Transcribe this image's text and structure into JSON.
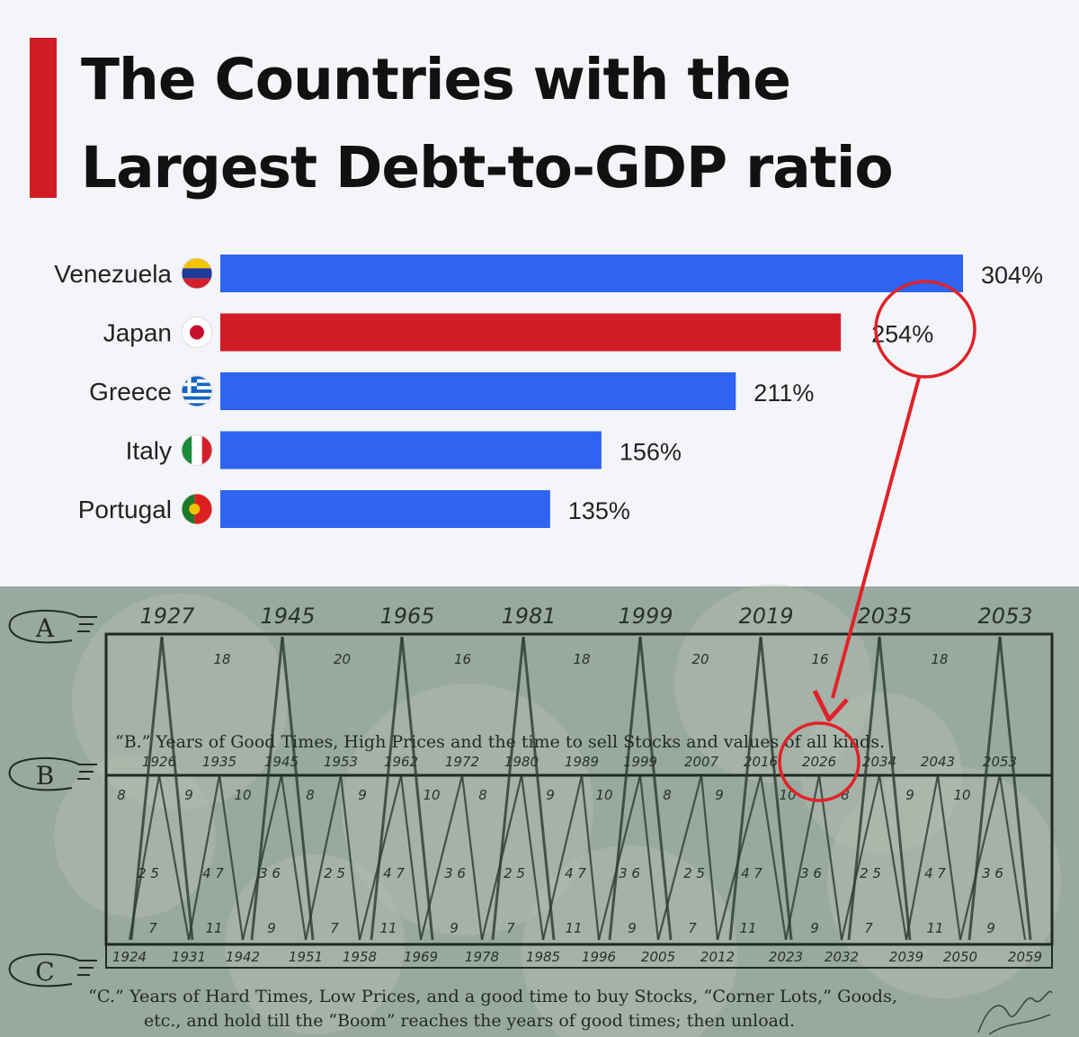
{
  "chart_data": [
    {
      "type": "bar",
      "title_lines": [
        "The Countries with the",
        "Largest Debt-to-GDP ratio"
      ],
      "categories": [
        "Venezuela",
        "Japan",
        "Greece",
        "Italy",
        "Portugal"
      ],
      "values": [
        304,
        254,
        211,
        156,
        135
      ],
      "value_labels": [
        "304%",
        "254%",
        "211%",
        "156%",
        "135%"
      ],
      "highlight": "Japan",
      "flag_icons": [
        "venezuela-flag-icon",
        "japan-flag-icon",
        "greece-flag-icon",
        "italy-flag-icon",
        "portugal-flag-icon"
      ],
      "colors": {
        "bar": "#2f63f2",
        "highlight": "#d21c24",
        "accent": "#d21c24",
        "circle": "#e0222a"
      }
    },
    {
      "type": "table",
      "row_markers": [
        "A",
        "B",
        "C"
      ],
      "a_years": [
        "1927",
        "1945",
        "1965",
        "1981",
        "1999",
        "2019",
        "2035",
        "2053"
      ],
      "a_intervals": [
        "18",
        "20",
        "16",
        "18",
        "20",
        "16",
        "18"
      ],
      "b_caption": "“B.” Years of Good Times, High Prices and the time to sell Stocks and values of all kinds.",
      "b_years": [
        "1926",
        "1935",
        "1945",
        "1953",
        "1962",
        "1972",
        "1980",
        "1989",
        "1999",
        "2007",
        "2016",
        "2026",
        "2034",
        "2043",
        "2053"
      ],
      "upper_intervals": [
        "8",
        "9",
        "10",
        "8",
        "9",
        "10",
        "8",
        "9",
        "10",
        "8",
        "9",
        "10",
        "8",
        "9",
        "10"
      ],
      "mid_numbers": [
        "2 5",
        "4 7",
        "3 6",
        "2 5",
        "4 7",
        "3 6",
        "2 5",
        "4 7",
        "3 6",
        "2 5",
        "4 7",
        "3 6",
        "2 5",
        "4 7",
        "3 6"
      ],
      "low_intervals": [
        "7",
        "11",
        "9",
        "7",
        "11",
        "9",
        "7",
        "11",
        "9",
        "7",
        "11",
        "9",
        "7",
        "11",
        "9"
      ],
      "c_years": [
        "1924",
        "1931",
        "1942",
        "1951",
        "1958",
        "1969",
        "1978",
        "1985",
        "1996",
        "2005",
        "2012",
        "2023",
        "2032",
        "2039",
        "2050",
        "2059"
      ],
      "c_caption_line1": "“C.”   Years of Hard Times, Low Prices, and a good time to buy Stocks, “Corner Lots,” Goods,",
      "c_caption_line2": "etc., and hold till  the “Boom” reaches the years of good times; then unload.",
      "highlight_year": "2026"
    }
  ]
}
